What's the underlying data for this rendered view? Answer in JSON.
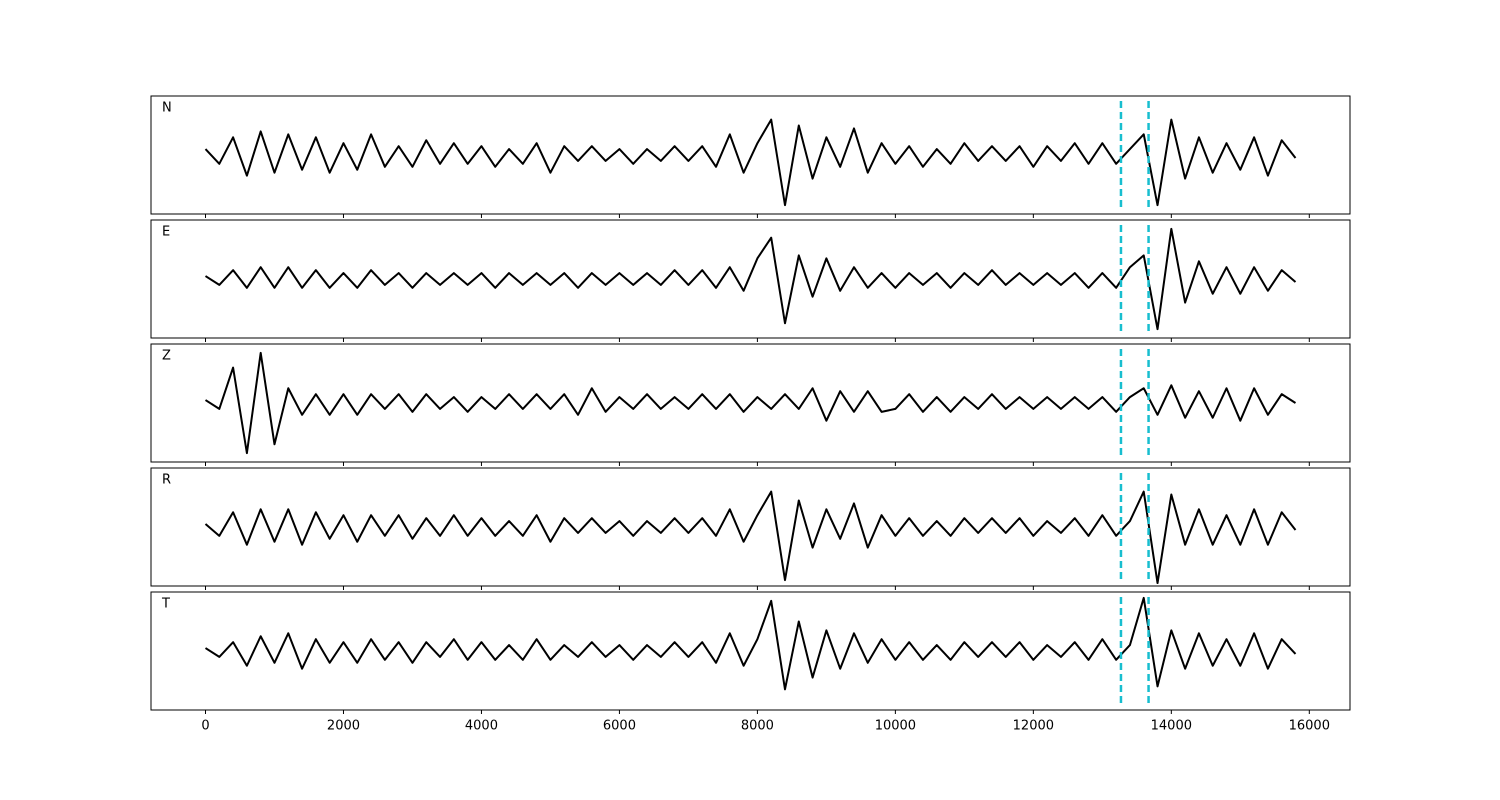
{
  "chart_data": {
    "type": "line",
    "x": [
      0,
      200,
      400,
      600,
      800,
      1000,
      1200,
      1400,
      1600,
      1800,
      2000,
      2200,
      2400,
      2600,
      2800,
      3000,
      3200,
      3400,
      3600,
      3800,
      4000,
      4200,
      4400,
      4600,
      4800,
      5000,
      5200,
      5400,
      5600,
      5800,
      6000,
      6200,
      6400,
      6600,
      6800,
      7000,
      7200,
      7400,
      7600,
      7800,
      8000,
      8200,
      8400,
      8600,
      8800,
      9000,
      9200,
      9400,
      9600,
      9800,
      10000,
      10200,
      10400,
      10600,
      10800,
      11000,
      11200,
      11400,
      11600,
      11800,
      12000,
      12200,
      12400,
      12600,
      12800,
      13000,
      13200,
      13400,
      13600,
      13800,
      14000,
      14200,
      14400,
      14600,
      14800,
      15000,
      15200,
      15400,
      15600,
      15800
    ],
    "xlim": [
      -790,
      16590
    ],
    "xticks": [
      0,
      2000,
      4000,
      6000,
      8000,
      10000,
      12000,
      14000,
      16000
    ],
    "ylim": [
      -1,
      1
    ],
    "vlines": [
      13270,
      13670
    ],
    "vline_color": "#17becf",
    "series": [
      {
        "name": "N",
        "color": "#000000",
        "values": [
          0.1,
          -0.15,
          0.3,
          -0.35,
          0.4,
          -0.3,
          0.35,
          -0.25,
          0.3,
          -0.3,
          0.2,
          -0.25,
          0.35,
          -0.2,
          0.15,
          -0.2,
          0.25,
          -0.15,
          0.2,
          -0.15,
          0.15,
          -0.2,
          0.1,
          -0.15,
          0.2,
          -0.3,
          0.15,
          -0.1,
          0.15,
          -0.1,
          0.1,
          -0.15,
          0.1,
          -0.1,
          0.15,
          -0.1,
          0.15,
          -0.2,
          0.35,
          -0.3,
          0.2,
          0.6,
          -0.85,
          0.5,
          -0.4,
          0.3,
          -0.2,
          0.45,
          -0.3,
          0.2,
          -0.15,
          0.15,
          -0.2,
          0.1,
          -0.15,
          0.2,
          -0.1,
          0.15,
          -0.1,
          0.15,
          -0.2,
          0.15,
          -0.1,
          0.2,
          -0.15,
          0.2,
          -0.15,
          0.1,
          0.35,
          -0.85,
          0.6,
          -0.4,
          0.3,
          -0.3,
          0.2,
          -0.25,
          0.3,
          -0.35,
          0.25,
          -0.05
        ]
      },
      {
        "name": "E",
        "color": "#000000",
        "values": [
          0.05,
          -0.1,
          0.15,
          -0.15,
          0.2,
          -0.15,
          0.2,
          -0.15,
          0.15,
          -0.15,
          0.1,
          -0.15,
          0.15,
          -0.1,
          0.1,
          -0.15,
          0.1,
          -0.1,
          0.1,
          -0.1,
          0.1,
          -0.15,
          0.1,
          -0.1,
          0.1,
          -0.1,
          0.1,
          -0.15,
          0.1,
          -0.1,
          0.1,
          -0.1,
          0.1,
          -0.1,
          0.15,
          -0.1,
          0.15,
          -0.15,
          0.2,
          -0.2,
          0.35,
          0.7,
          -0.75,
          0.4,
          -0.3,
          0.35,
          -0.2,
          0.2,
          -0.15,
          0.1,
          -0.15,
          0.1,
          -0.1,
          0.1,
          -0.15,
          0.1,
          -0.1,
          0.15,
          -0.1,
          0.1,
          -0.1,
          0.1,
          -0.1,
          0.1,
          -0.15,
          0.1,
          -0.15,
          0.2,
          0.4,
          -0.85,
          0.85,
          -0.4,
          0.3,
          -0.25,
          0.2,
          -0.25,
          0.2,
          -0.2,
          0.15,
          -0.05
        ]
      },
      {
        "name": "Z",
        "color": "#000000",
        "values": [
          0.05,
          -0.1,
          0.6,
          -0.85,
          0.85,
          -0.7,
          0.25,
          -0.2,
          0.15,
          -0.2,
          0.15,
          -0.2,
          0.15,
          -0.1,
          0.15,
          -0.15,
          0.15,
          -0.1,
          0.1,
          -0.15,
          0.1,
          -0.1,
          0.15,
          -0.1,
          0.15,
          -0.1,
          0.15,
          -0.2,
          0.25,
          -0.15,
          0.1,
          -0.1,
          0.15,
          -0.1,
          0.1,
          -0.1,
          0.15,
          -0.1,
          0.15,
          -0.15,
          0.1,
          -0.1,
          0.15,
          -0.1,
          0.25,
          -0.3,
          0.2,
          -0.15,
          0.2,
          -0.15,
          -0.1,
          0.15,
          -0.15,
          0.1,
          -0.15,
          0.1,
          -0.1,
          0.15,
          -0.1,
          0.1,
          -0.1,
          0.1,
          -0.1,
          0.1,
          -0.1,
          0.1,
          -0.15,
          0.1,
          0.25,
          -0.2,
          0.3,
          -0.25,
          0.2,
          -0.25,
          0.25,
          -0.3,
          0.25,
          -0.2,
          0.15,
          0.0
        ]
      },
      {
        "name": "R",
        "color": "#000000",
        "values": [
          0.05,
          -0.15,
          0.25,
          -0.3,
          0.3,
          -0.25,
          0.3,
          -0.3,
          0.25,
          -0.2,
          0.2,
          -0.25,
          0.2,
          -0.15,
          0.2,
          -0.2,
          0.15,
          -0.15,
          0.2,
          -0.15,
          0.15,
          -0.15,
          0.1,
          -0.15,
          0.2,
          -0.25,
          0.15,
          -0.1,
          0.15,
          -0.1,
          0.1,
          -0.15,
          0.1,
          -0.1,
          0.15,
          -0.1,
          0.15,
          -0.15,
          0.3,
          -0.25,
          0.2,
          0.6,
          -0.9,
          0.45,
          -0.35,
          0.3,
          -0.2,
          0.4,
          -0.35,
          0.2,
          -0.15,
          0.15,
          -0.15,
          0.1,
          -0.15,
          0.15,
          -0.1,
          0.15,
          -0.1,
          0.15,
          -0.15,
          0.1,
          -0.1,
          0.15,
          -0.15,
          0.2,
          -0.15,
          0.1,
          0.6,
          -0.95,
          0.55,
          -0.3,
          0.3,
          -0.3,
          0.2,
          -0.3,
          0.3,
          -0.3,
          0.25,
          -0.05
        ]
      },
      {
        "name": "T",
        "color": "#000000",
        "values": [
          0.05,
          -0.1,
          0.15,
          -0.25,
          0.25,
          -0.2,
          0.3,
          -0.3,
          0.2,
          -0.2,
          0.15,
          -0.2,
          0.2,
          -0.15,
          0.15,
          -0.2,
          0.15,
          -0.1,
          0.2,
          -0.15,
          0.15,
          -0.15,
          0.1,
          -0.15,
          0.2,
          -0.15,
          0.1,
          -0.1,
          0.15,
          -0.1,
          0.1,
          -0.15,
          0.1,
          -0.1,
          0.15,
          -0.1,
          0.15,
          -0.2,
          0.3,
          -0.25,
          0.2,
          0.85,
          -0.65,
          0.5,
          -0.45,
          0.35,
          -0.3,
          0.3,
          -0.2,
          0.2,
          -0.15,
          0.15,
          -0.15,
          0.1,
          -0.15,
          0.15,
          -0.1,
          0.15,
          -0.1,
          0.15,
          -0.15,
          0.1,
          -0.1,
          0.15,
          -0.15,
          0.2,
          -0.15,
          0.1,
          0.9,
          -0.6,
          0.35,
          -0.3,
          0.3,
          -0.25,
          0.2,
          -0.25,
          0.3,
          -0.3,
          0.2,
          -0.05
        ]
      }
    ]
  }
}
